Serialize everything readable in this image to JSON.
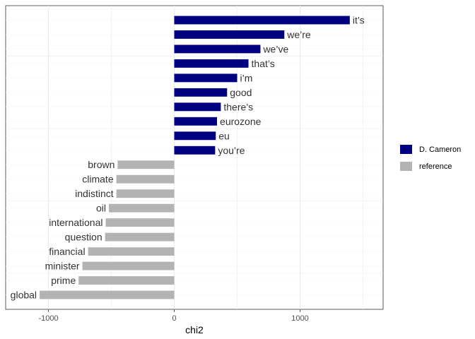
{
  "chart_data": {
    "type": "bar",
    "orientation": "horizontal",
    "xlabel": "chi2",
    "ylabel": "",
    "xlim": [
      -1340,
      1660
    ],
    "x_ticks": [
      -1000,
      0,
      1000
    ],
    "grid": true,
    "legend_position": "right",
    "series": [
      {
        "name": "D. Cameron",
        "color": "#000080",
        "terms": [
          "it’s",
          "we’re",
          "we’ve",
          "that’s",
          "i’m",
          "good",
          "there’s",
          "eurozone",
          "eu",
          "you’re"
        ],
        "values": [
          1395,
          875,
          685,
          590,
          500,
          420,
          370,
          340,
          330,
          325
        ]
      },
      {
        "name": "reference",
        "color": "#b3b3b3",
        "terms": [
          "brown",
          "climate",
          "indistinct",
          "oil",
          "international",
          "question",
          "financial",
          "minister",
          "prime",
          "global"
        ],
        "values": [
          -450,
          -460,
          -460,
          -520,
          -545,
          -550,
          -685,
          -730,
          -760,
          -1070
        ]
      }
    ]
  }
}
